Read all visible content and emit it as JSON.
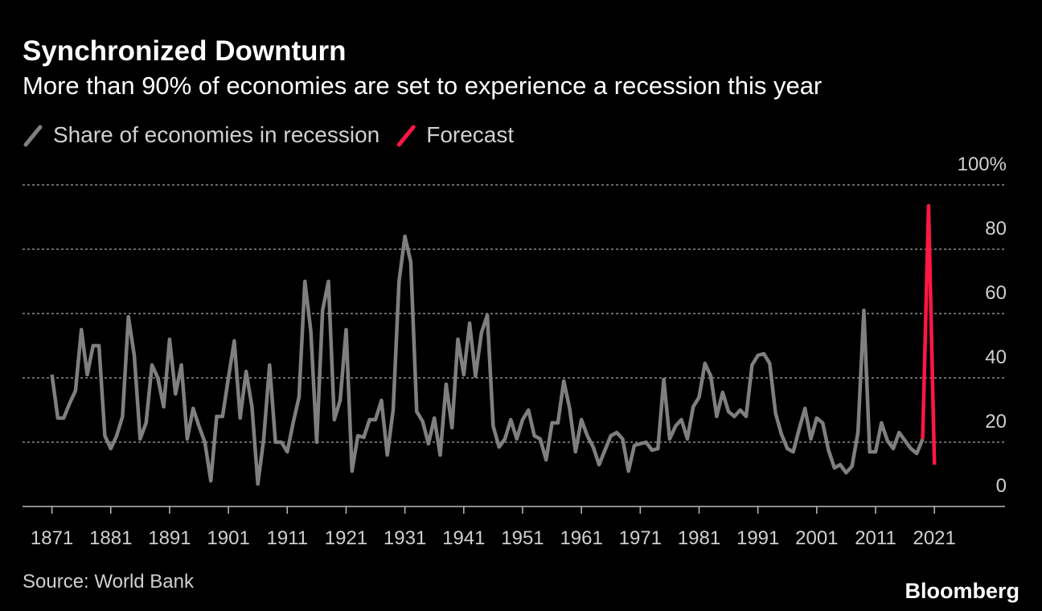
{
  "chart_data": {
    "type": "line",
    "title": "Synchronized Downturn",
    "subtitle": "More than 90% of economies are set to experience a recession this year",
    "source": "Source: World Bank",
    "credit": "Bloomberg",
    "xlim": [
      1866,
      2033
    ],
    "xticks": [
      1871,
      1881,
      1891,
      1901,
      1911,
      1921,
      1931,
      1941,
      1951,
      1961,
      1971,
      1981,
      1991,
      2001,
      2011,
      2021
    ],
    "ylim": [
      0,
      100
    ],
    "yticks": [
      0,
      20,
      40,
      60,
      80,
      {
        "value": 100,
        "label": "100%"
      }
    ],
    "grid": true,
    "series": [
      {
        "name": "Share of economies in recession",
        "color": "#7f7f7f",
        "x": [
          1871,
          1872,
          1873,
          1874,
          1875,
          1876,
          1877,
          1878,
          1879,
          1880,
          1881,
          1882,
          1883,
          1884,
          1885,
          1886,
          1887,
          1888,
          1889,
          1890,
          1891,
          1892,
          1893,
          1894,
          1895,
          1896,
          1897,
          1898,
          1899,
          1900,
          1901,
          1902,
          1903,
          1904,
          1905,
          1906,
          1907,
          1908,
          1909,
          1910,
          1911,
          1912,
          1913,
          1914,
          1915,
          1916,
          1917,
          1918,
          1919,
          1920,
          1921,
          1922,
          1923,
          1924,
          1925,
          1926,
          1927,
          1928,
          1929,
          1930,
          1931,
          1932,
          1933,
          1934,
          1935,
          1936,
          1937,
          1938,
          1939,
          1940,
          1941,
          1942,
          1943,
          1944,
          1945,
          1946,
          1947,
          1948,
          1949,
          1950,
          1951,
          1952,
          1953,
          1954,
          1955,
          1956,
          1957,
          1958,
          1959,
          1960,
          1961,
          1962,
          1963,
          1964,
          1965,
          1966,
          1967,
          1968,
          1969,
          1970,
          1971,
          1972,
          1973,
          1974,
          1975,
          1976,
          1977,
          1978,
          1979,
          1980,
          1981,
          1982,
          1983,
          1984,
          1985,
          1986,
          1987,
          1988,
          1989,
          1990,
          1991,
          1992,
          1993,
          1994,
          1995,
          1996,
          1997,
          1998,
          1999,
          2000,
          2001,
          2002,
          2003,
          2004,
          2005,
          2006,
          2007,
          2008,
          2009,
          2010,
          2011,
          2012,
          2013,
          2014,
          2015,
          2016,
          2017,
          2018,
          2019
        ],
        "values": [
          41,
          27.5,
          27.5,
          32,
          36,
          55,
          41,
          50,
          50,
          22,
          18,
          22,
          28,
          59,
          47,
          21,
          26,
          44,
          40,
          31,
          52,
          35,
          44,
          21,
          30.5,
          25,
          20,
          8,
          28,
          28,
          40,
          51.5,
          27.5,
          42,
          31,
          7,
          21,
          44,
          20,
          20,
          17,
          26,
          34,
          70,
          54.5,
          20,
          61,
          70,
          27,
          33,
          55,
          11,
          22,
          21.5,
          27,
          27,
          33,
          16,
          30,
          70,
          84,
          76,
          29.5,
          26.5,
          19.5,
          27.5,
          16,
          38,
          24.5,
          52,
          41,
          57,
          40.5,
          54,
          59.5,
          25,
          18.5,
          21,
          27,
          21,
          27,
          30,
          22,
          21,
          14.5,
          26,
          26,
          39,
          30.5,
          17,
          27,
          22,
          18.5,
          13,
          17.5,
          22,
          23,
          21,
          11,
          19,
          19.5,
          20,
          17.5,
          18,
          39.5,
          21,
          25,
          27,
          21,
          31,
          34,
          44.5,
          40.5,
          28,
          35.5,
          29.5,
          28,
          30,
          28,
          44,
          47,
          47.5,
          44.5,
          29,
          22.5,
          18,
          17,
          24,
          30.5,
          21,
          27.5,
          26,
          17.5,
          12,
          13,
          10.5,
          12.5,
          23,
          61,
          17,
          17,
          26,
          20.5,
          18,
          23,
          20.5,
          18,
          16.5,
          21
        ]
      },
      {
        "name": "Forecast",
        "color": "#ff1744",
        "x": [
          2019,
          2020,
          2021
        ],
        "values": [
          21,
          93.5,
          13
        ]
      }
    ]
  }
}
